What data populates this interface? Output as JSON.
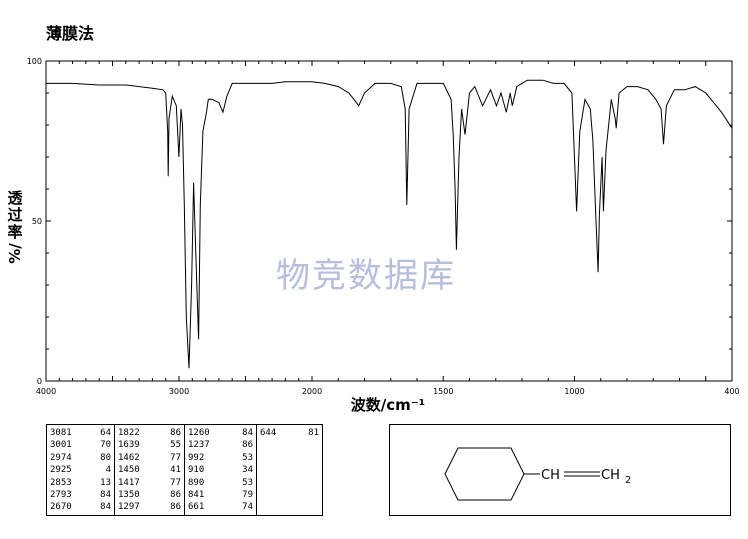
{
  "title": "薄膜法",
  "watermark": "物竞数据库",
  "structure": {
    "formula_part1": "CH",
    "formula_part2": "CH",
    "subscript": "2"
  },
  "chart_data": {
    "type": "line",
    "xlabel": "波数/cm⁻¹",
    "ylabel_chars": [
      "透",
      "过",
      "率"
    ],
    "ylabel_unit": "%/",
    "xlim": [
      4000,
      400
    ],
    "ylim": [
      0,
      100
    ],
    "x_ticks": [
      4000,
      3000,
      2000,
      1500,
      1000,
      400
    ],
    "y_ticks": [
      0,
      50,
      100
    ],
    "series": [
      {
        "x": [
          4000,
          3800,
          3600,
          3400,
          3200,
          3120,
          3100,
          3085,
          3081,
          3075,
          3050,
          3020,
          3001,
          2985,
          2974,
          2960,
          2945,
          2925,
          2905,
          2890,
          2870,
          2853,
          2840,
          2820,
          2793,
          2780,
          2750,
          2700,
          2670,
          2640,
          2600,
          2500,
          2400,
          2300,
          2200,
          2100,
          2000,
          1950,
          1900,
          1860,
          1840,
          1822,
          1800,
          1760,
          1700,
          1660,
          1645,
          1639,
          1630,
          1600,
          1550,
          1500,
          1470,
          1462,
          1455,
          1450,
          1440,
          1430,
          1417,
          1400,
          1380,
          1350,
          1320,
          1297,
          1280,
          1260,
          1245,
          1237,
          1220,
          1180,
          1120,
          1080,
          1040,
          1010,
          992,
          980,
          960,
          940,
          930,
          918,
          910,
          905,
          895,
          890,
          880,
          860,
          845,
          841,
          830,
          800,
          760,
          720,
          690,
          670,
          661,
          650,
          620,
          580,
          540,
          500,
          470,
          440,
          400
        ],
        "y": [
          93,
          93,
          92.5,
          92.5,
          91.5,
          91,
          90,
          78,
          64,
          82,
          89,
          86,
          70,
          85,
          80,
          55,
          20,
          4,
          30,
          62,
          35,
          13,
          55,
          78,
          84,
          88,
          88,
          87,
          84,
          89,
          93,
          93,
          93,
          93,
          93.5,
          93.5,
          93.5,
          93,
          92,
          90,
          88,
          86,
          90,
          93,
          93,
          92,
          85,
          55,
          85,
          93,
          93,
          93,
          88,
          77,
          60,
          41,
          70,
          85,
          77,
          90,
          92,
          86,
          91,
          86,
          90,
          84,
          90,
          86,
          92,
          94,
          94,
          93,
          93,
          90,
          53,
          78,
          88,
          85,
          75,
          50,
          34,
          52,
          70,
          53,
          72,
          88,
          82,
          79,
          90,
          92,
          92,
          91,
          88,
          85,
          74,
          86,
          91,
          91,
          92,
          90,
          87,
          84,
          79
        ]
      }
    ]
  },
  "peak_table": {
    "columns": [
      [
        [
          "3081",
          "64"
        ],
        [
          "3001",
          "70"
        ],
        [
          "2974",
          "80"
        ],
        [
          "2925",
          "4"
        ],
        [
          "2853",
          "13"
        ],
        [
          "2793",
          "84"
        ],
        [
          "2670",
          "84"
        ]
      ],
      [
        [
          "1822",
          "86"
        ],
        [
          "1639",
          "55"
        ],
        [
          "1462",
          "77"
        ],
        [
          "1450",
          "41"
        ],
        [
          "1417",
          "77"
        ],
        [
          "1350",
          "86"
        ],
        [
          "1297",
          "86"
        ]
      ],
      [
        [
          "1260",
          "84"
        ],
        [
          "1237",
          "86"
        ],
        [
          "992",
          "53"
        ],
        [
          "910",
          "34"
        ],
        [
          "890",
          "53"
        ],
        [
          "841",
          "79"
        ],
        [
          "661",
          "74"
        ]
      ],
      [
        [
          "644",
          "81"
        ]
      ]
    ]
  }
}
